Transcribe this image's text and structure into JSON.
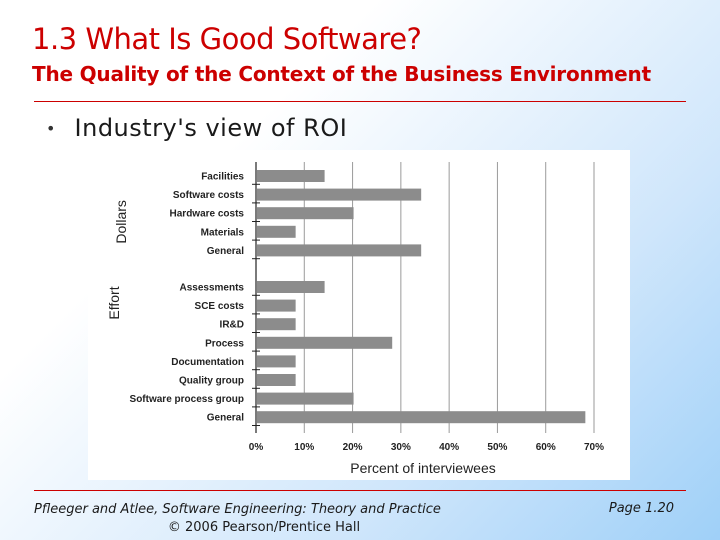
{
  "slide": {
    "title": "1.3 What Is Good Software?",
    "subtitle": "The Quality of the Context of the Business Environment",
    "bullet": "Industry's view of ROI"
  },
  "footer": {
    "citation": "Pfleeger and Atlee, Software Engineering: Theory and Practice",
    "copyright": "© 2006 Pearson/Prentice Hall",
    "page": "Page 1.20"
  },
  "chart_data": {
    "type": "bar",
    "orientation": "horizontal",
    "xlabel": "Percent of interviewees",
    "xlim": [
      0,
      70
    ],
    "xticks": [
      "0%",
      "10%",
      "20%",
      "30%",
      "40%",
      "50%",
      "60%",
      "70%"
    ],
    "grid": true,
    "bar_color": "#8c8c8c",
    "groups": [
      {
        "label": "Dollars",
        "categories": [
          "Facilities",
          "Software costs",
          "Hardware costs",
          "Materials",
          "General"
        ],
        "values": [
          14,
          34,
          20,
          8,
          34
        ]
      },
      {
        "label": "Effort",
        "categories": [
          "Assessments",
          "SCE costs",
          "IR&D",
          "Process",
          "Documentation",
          "Quality group",
          "Software process group",
          "General"
        ],
        "values": [
          14,
          8,
          8,
          28,
          8,
          8,
          20,
          68
        ]
      }
    ]
  }
}
